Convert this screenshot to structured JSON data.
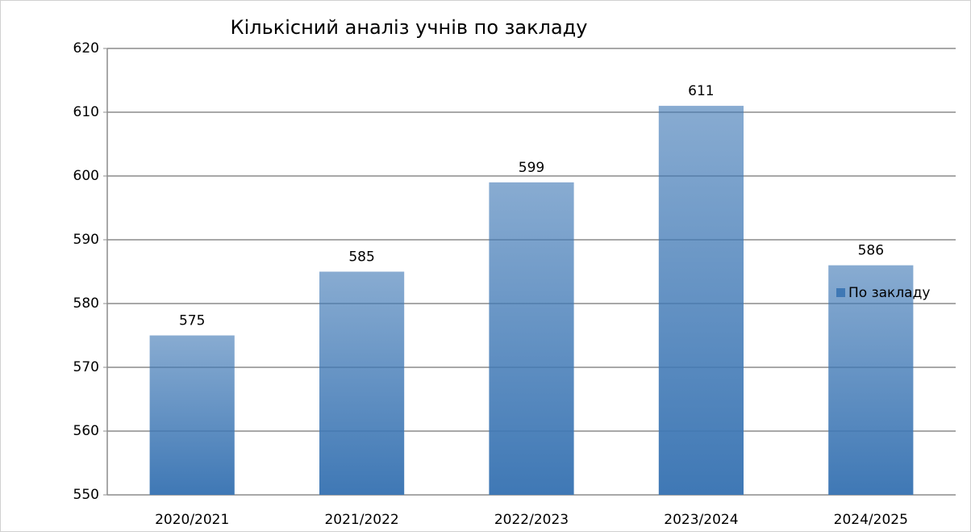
{
  "chart_data": {
    "type": "bar",
    "title": "Кількісний аналіз учнів по закладу",
    "categories": [
      "2020/2021",
      "2021/2022",
      "2022/2023",
      "2023/2024",
      "2024/2025"
    ],
    "series": [
      {
        "name": "По закладу",
        "color": "#3f78b5",
        "values": [
          575,
          585,
          599,
          611,
          586
        ]
      }
    ],
    "ylim": [
      550,
      620
    ],
    "yticks": [
      550,
      560,
      570,
      580,
      590,
      600,
      610,
      620
    ],
    "grid": true,
    "legend": "right"
  }
}
